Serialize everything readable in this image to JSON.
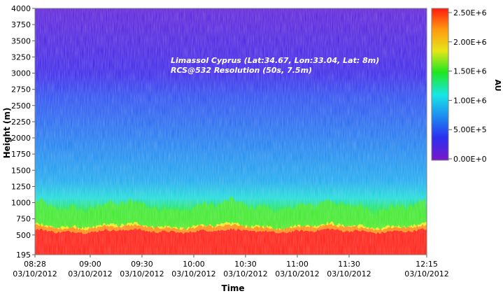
{
  "chart_data": {
    "type": "heatmap",
    "title": "Limassol Cyprus (Lat:34.67, Lon:33.04, Lat: 8m)",
    "subtitle": "RCS@532 Resolution (50s, 7.5m)",
    "xlabel": "Time",
    "ylabel": "Height (m)",
    "colorbar_label": "AU",
    "x_ticks": [
      {
        "time": "08:28",
        "date": "03/10/2012"
      },
      {
        "time": "09:00",
        "date": "03/10/2012"
      },
      {
        "time": "09:30",
        "date": "03/10/2012"
      },
      {
        "time": "10:00",
        "date": "03/10/2012"
      },
      {
        "time": "10:30",
        "date": "03/10/2012"
      },
      {
        "time": "11:00",
        "date": "03/10/2012"
      },
      {
        "time": "11:30",
        "date": "03/10/2012"
      },
      {
        "time": "12:15",
        "date": "03/10/2012"
      }
    ],
    "x_range": [
      "08:28",
      "12:15"
    ],
    "y_ticks": [
      "4000",
      "3750",
      "3500",
      "3250",
      "3000",
      "2750",
      "2500",
      "2250",
      "2000",
      "1750",
      "1500",
      "1250",
      "1000",
      "750",
      "500",
      "195"
    ],
    "y_range": [
      195,
      4000
    ],
    "colorbar_ticks": [
      "2.50E+6",
      "2.00E+6",
      "1.50E+6",
      "1.00E+6",
      "5.00E+5",
      "0.00E+0"
    ],
    "color_range": [
      0,
      2500000
    ],
    "colormap": [
      "#7a16c8",
      "#2a30f0",
      "#1e8cf0",
      "#18e6e6",
      "#20e620",
      "#e6e618",
      "#ff9a10",
      "#ff1a10"
    ],
    "layers": [
      {
        "height_top": 600,
        "value": 2500000
      },
      {
        "height_top": 700,
        "value": 1800000
      },
      {
        "height_top": 950,
        "value": 1400000
      },
      {
        "height_top": 1350,
        "value": 800000
      },
      {
        "height_top": 2550,
        "value": 450000
      },
      {
        "height_top": 4000,
        "value": 150000
      }
    ]
  }
}
